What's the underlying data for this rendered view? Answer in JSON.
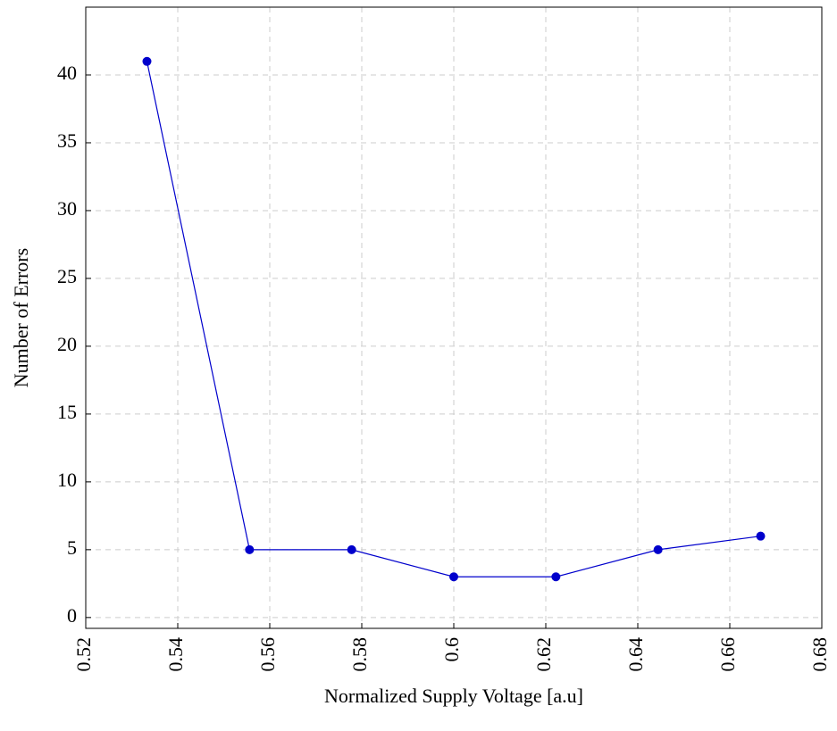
{
  "chart_data": {
    "type": "line",
    "xlabel": "Normalized Supply Voltage [a.u]",
    "ylabel": "Number of Errors",
    "x": [
      0.5333,
      0.5556,
      0.5778,
      0.6,
      0.6222,
      0.6444,
      0.6667
    ],
    "series": [
      {
        "name": "Errors",
        "color": "#0000cc",
        "values": [
          41,
          5,
          5,
          3,
          3,
          5,
          6
        ]
      }
    ],
    "xlim": [
      0.52,
      0.68
    ],
    "xticks": [
      0.52,
      0.54,
      0.56,
      0.58,
      0.6,
      0.62,
      0.64,
      0.66,
      0.68
    ],
    "ylim": [
      -0.8,
      45
    ],
    "yticks": [
      0,
      5,
      10,
      15,
      20,
      25,
      30,
      35,
      40
    ],
    "grid": true
  }
}
